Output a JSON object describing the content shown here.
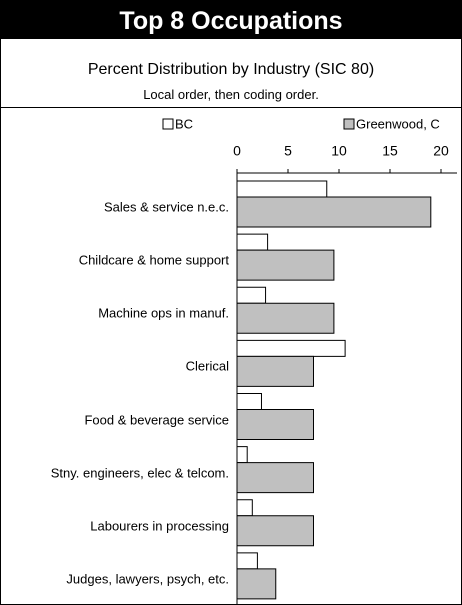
{
  "chart_data": {
    "type": "bar",
    "orientation": "horizontal",
    "title": "Top 8 Occupations",
    "subtitle": "Percent Distribution by Industry (SIC 80)",
    "note": "Local order, then coding order.",
    "categories": [
      "Sales & service  n.e.c.",
      "Childcare & home support",
      "Machine ops in manuf.",
      "Clerical",
      "Food & beverage service",
      "Stny. engineers, elec & telcom.",
      "Labourers in processing",
      "Judges, lawyers, psych, etc."
    ],
    "series": [
      {
        "name": "BC",
        "color": "#ffffff",
        "values": [
          8.8,
          3.0,
          2.8,
          10.6,
          2.4,
          1.0,
          1.5,
          2.0
        ]
      },
      {
        "name": "Greenwood, C",
        "color": "#c0c0c0",
        "values": [
          19.0,
          9.5,
          9.5,
          7.5,
          7.5,
          7.5,
          7.5,
          3.8
        ]
      }
    ],
    "xlim": [
      0,
      20
    ],
    "xticks": [
      0,
      5,
      10,
      15,
      20
    ],
    "legend": "top"
  }
}
